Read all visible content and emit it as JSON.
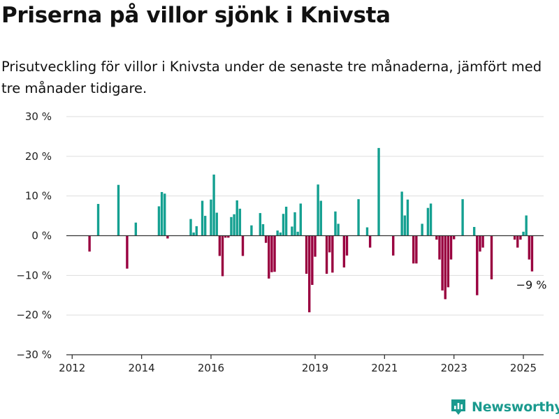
{
  "header": {
    "title": "Priserna på villor sjönk i Knivsta",
    "subtitle": "Prisutveckling för villor i Knivsta under de senaste tre månaderna, jämfört med tre månader tidigare."
  },
  "brand": {
    "name": "Newsworthy",
    "color": "#1a9a8e"
  },
  "colors": {
    "positive": "#14a091",
    "negative": "#99003f",
    "grid": "#dddddd",
    "axis": "#333333"
  },
  "chart_data": {
    "type": "bar",
    "title": "Priserna på villor sjönk i Knivsta",
    "subtitle": "Prisutveckling för villor i Knivsta under de senaste tre månaderna, jämfört med tre månader tidigare.",
    "xlabel": "",
    "ylabel": "",
    "xlim": [
      "2011-11",
      "2025-08"
    ],
    "ylim": [
      -30,
      30
    ],
    "y_ticks": [
      {
        "value": 30,
        "label": "30 %"
      },
      {
        "value": 20,
        "label": "20 %"
      },
      {
        "value": 10,
        "label": "10 %"
      },
      {
        "value": 0,
        "label": "0 %"
      },
      {
        "value": -10,
        "label": "−10 %"
      },
      {
        "value": -20,
        "label": "−20 %"
      },
      {
        "value": -30,
        "label": "−30 %"
      }
    ],
    "x_ticks": [
      {
        "date": "2012-01",
        "label": "2012"
      },
      {
        "date": "2014-01",
        "label": "2014"
      },
      {
        "date": "2016-01",
        "label": "2016"
      },
      {
        "date": "2019-01",
        "label": "2019"
      },
      {
        "date": "2021-01",
        "label": "2021"
      },
      {
        "date": "2023-01",
        "label": "2023"
      },
      {
        "date": "2025-01",
        "label": "2025"
      }
    ],
    "grid": true,
    "legend": "none",
    "series": [
      {
        "values": [
          {
            "date": "2012-07",
            "value": -4
          },
          {
            "date": "2012-10",
            "value": 8
          },
          {
            "date": "2013-05",
            "value": 12.8
          },
          {
            "date": "2013-08",
            "value": -8.3
          },
          {
            "date": "2013-11",
            "value": 3.3
          },
          {
            "date": "2014-07",
            "value": 7.4
          },
          {
            "date": "2014-08",
            "value": 11
          },
          {
            "date": "2014-09",
            "value": 10.6
          },
          {
            "date": "2014-10",
            "value": -0.7
          },
          {
            "date": "2015-06",
            "value": 4.2
          },
          {
            "date": "2015-07",
            "value": 0.8
          },
          {
            "date": "2015-08",
            "value": 2.4
          },
          {
            "date": "2015-10",
            "value": 8.8
          },
          {
            "date": "2015-11",
            "value": 5
          },
          {
            "date": "2016-01",
            "value": 9.1
          },
          {
            "date": "2016-02",
            "value": 15.4
          },
          {
            "date": "2016-03",
            "value": 5.8
          },
          {
            "date": "2016-04",
            "value": -5.1
          },
          {
            "date": "2016-05",
            "value": -10.2
          },
          {
            "date": "2016-06",
            "value": -0.5
          },
          {
            "date": "2016-07",
            "value": -0.5
          },
          {
            "date": "2016-08",
            "value": 4.7
          },
          {
            "date": "2016-09",
            "value": 5.4
          },
          {
            "date": "2016-10",
            "value": 8.9
          },
          {
            "date": "2016-11",
            "value": 6.8
          },
          {
            "date": "2016-12",
            "value": -5.1
          },
          {
            "date": "2017-03",
            "value": 2.6
          },
          {
            "date": "2017-06",
            "value": 5.7
          },
          {
            "date": "2017-07",
            "value": 2.9
          },
          {
            "date": "2017-08",
            "value": -1.8
          },
          {
            "date": "2017-09",
            "value": -10.8
          },
          {
            "date": "2017-10",
            "value": -9.2
          },
          {
            "date": "2017-11",
            "value": -9.1
          },
          {
            "date": "2017-12",
            "value": 1.3
          },
          {
            "date": "2018-01",
            "value": 0.8
          },
          {
            "date": "2018-02",
            "value": 5.5
          },
          {
            "date": "2018-03",
            "value": 7.3
          },
          {
            "date": "2018-05",
            "value": 2.3
          },
          {
            "date": "2018-06",
            "value": 5.9
          },
          {
            "date": "2018-07",
            "value": 1
          },
          {
            "date": "2018-08",
            "value": 8.1
          },
          {
            "date": "2018-10",
            "value": -9.6
          },
          {
            "date": "2018-11",
            "value": -19.3
          },
          {
            "date": "2018-12",
            "value": -12.4
          },
          {
            "date": "2019-01",
            "value": -5.3
          },
          {
            "date": "2019-02",
            "value": 12.9
          },
          {
            "date": "2019-03",
            "value": 8.8
          },
          {
            "date": "2019-05",
            "value": -9.6
          },
          {
            "date": "2019-06",
            "value": -4.2
          },
          {
            "date": "2019-07",
            "value": -9.3
          },
          {
            "date": "2019-08",
            "value": 6.1
          },
          {
            "date": "2019-09",
            "value": 3
          },
          {
            "date": "2019-11",
            "value": -8
          },
          {
            "date": "2019-12",
            "value": -5
          },
          {
            "date": "2020-04",
            "value": 9.2
          },
          {
            "date": "2020-07",
            "value": 2.1
          },
          {
            "date": "2020-08",
            "value": -3
          },
          {
            "date": "2020-11",
            "value": 22.1
          },
          {
            "date": "2021-04",
            "value": -5
          },
          {
            "date": "2021-07",
            "value": 11.1
          },
          {
            "date": "2021-08",
            "value": 5.1
          },
          {
            "date": "2021-09",
            "value": 9.1
          },
          {
            "date": "2021-11",
            "value": -7
          },
          {
            "date": "2021-12",
            "value": -7
          },
          {
            "date": "2022-02",
            "value": 3
          },
          {
            "date": "2022-04",
            "value": 7
          },
          {
            "date": "2022-05",
            "value": 8.1
          },
          {
            "date": "2022-07",
            "value": -1
          },
          {
            "date": "2022-08",
            "value": -6
          },
          {
            "date": "2022-09",
            "value": -13.8
          },
          {
            "date": "2022-10",
            "value": -16
          },
          {
            "date": "2022-11",
            "value": -13
          },
          {
            "date": "2022-12",
            "value": -6
          },
          {
            "date": "2023-01",
            "value": -0.9
          },
          {
            "date": "2023-04",
            "value": 9.2
          },
          {
            "date": "2023-08",
            "value": 2.2
          },
          {
            "date": "2023-09",
            "value": -15
          },
          {
            "date": "2023-10",
            "value": -4
          },
          {
            "date": "2023-11",
            "value": -3
          },
          {
            "date": "2024-02",
            "value": -11
          },
          {
            "date": "2024-10",
            "value": -1
          },
          {
            "date": "2024-11",
            "value": -3
          },
          {
            "date": "2024-12",
            "value": -1
          },
          {
            "date": "2025-01",
            "value": 1
          },
          {
            "date": "2025-02",
            "value": 5.1
          },
          {
            "date": "2025-03",
            "value": -6
          },
          {
            "date": "2025-04",
            "value": -9
          }
        ]
      }
    ],
    "annotations": [
      {
        "date": "2025-04",
        "value": -9,
        "text": "−9 %"
      }
    ]
  }
}
